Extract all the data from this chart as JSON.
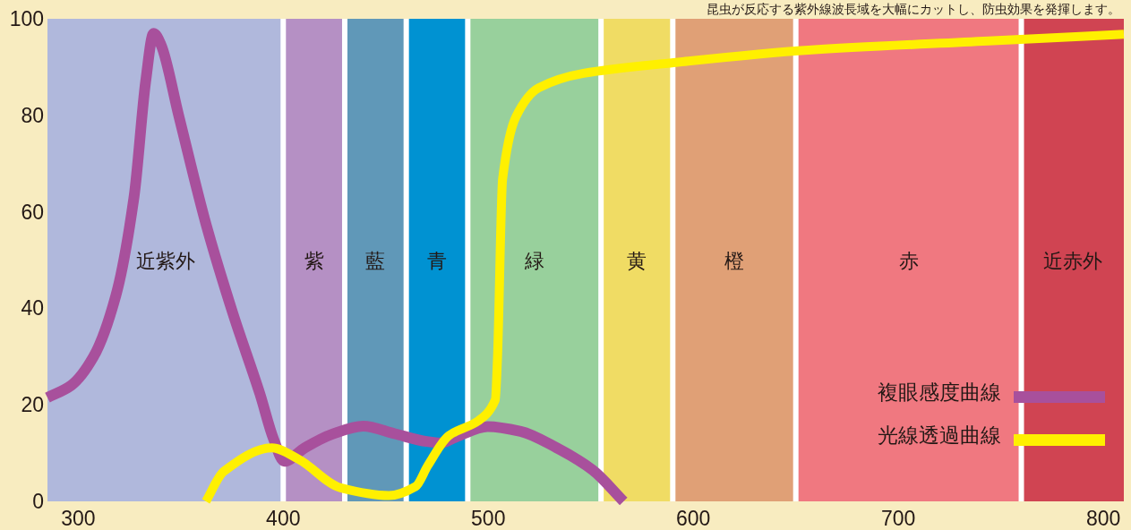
{
  "chart_data": {
    "type": "line",
    "annotations": [
      "昆虫が反応する紫外線波長域を大幅にカットし、防虫効果を発揮します。"
    ],
    "xlim": [
      285,
      810
    ],
    "ylim": [
      0,
      100
    ],
    "xticks": [
      300,
      400,
      500,
      600,
      700,
      800
    ],
    "yticks": [
      0,
      20,
      40,
      60,
      80,
      100
    ],
    "grid": false,
    "legend": "bottom right",
    "marker": "none",
    "line_style": "solid",
    "bands": [
      {
        "axis": "x",
        "from": 285,
        "to": 400,
        "label": "近紫外",
        "color": "#b0b8dc"
      },
      {
        "axis": "x",
        "from": 400,
        "to": 430,
        "label": "紫",
        "color": "#b590c4"
      },
      {
        "axis": "x",
        "from": 430,
        "to": 460,
        "label": "藍",
        "color": "#6098b8"
      },
      {
        "axis": "x",
        "from": 460,
        "to": 490,
        "label": "青",
        "color": "#0092d2"
      },
      {
        "axis": "x",
        "from": 490,
        "to": 555,
        "label": "緑",
        "color": "#98d09c"
      },
      {
        "axis": "x",
        "from": 555,
        "to": 590,
        "label": "黄",
        "color": "#f0dc64"
      },
      {
        "axis": "x",
        "from": 590,
        "to": 650,
        "label": "橙",
        "color": "#e0a076"
      },
      {
        "axis": "x",
        "from": 650,
        "to": 760,
        "label": "赤",
        "color": "#f07880"
      },
      {
        "axis": "x",
        "from": 760,
        "to": 810,
        "label": "近赤外",
        "color": "#d04452"
      }
    ],
    "series": [
      {
        "name": "複眼感度曲線",
        "color": "#a8509c",
        "x": [
          285,
          296.5,
          307.5,
          318.4,
          327.2,
          332.9,
          336.8,
          340.4,
          349.1,
          362.3,
          375.4,
          388.6,
          395.2,
          400.5,
          410.5,
          423.7,
          439,
          454.4,
          470,
          476.7,
          485.1,
          499.7,
          515.8,
          533.3,
          550.9,
          566
        ],
        "values": [
          21.5,
          24,
          30,
          42.7,
          63,
          87,
          97,
          94.6,
          79.8,
          57.5,
          39,
          22.3,
          13,
          8.3,
          11.1,
          13.9,
          15.6,
          14,
          12.4,
          12.1,
          13.5,
          15.5,
          14.5,
          11.1,
          6.5,
          0
        ]
      },
      {
        "name": "光線透過曲線",
        "color": "#fff000",
        "x": [
          362.3,
          371,
          394.4,
          407.6,
          428,
          451.5,
          464.6,
          470.5,
          480.7,
          495.2,
          503.4,
          504.5,
          507,
          513.6,
          524.6,
          546.5,
          590.4,
          656.1,
          743.9,
          810
        ],
        "values": [
          0,
          6.2,
          11.1,
          8.7,
          2.8,
          1.2,
          3.1,
          7.4,
          13.6,
          16.7,
          21,
          29.7,
          66.8,
          79.8,
          85.7,
          88.7,
          90.9,
          93.5,
          95.4,
          96.8
        ]
      }
    ]
  }
}
